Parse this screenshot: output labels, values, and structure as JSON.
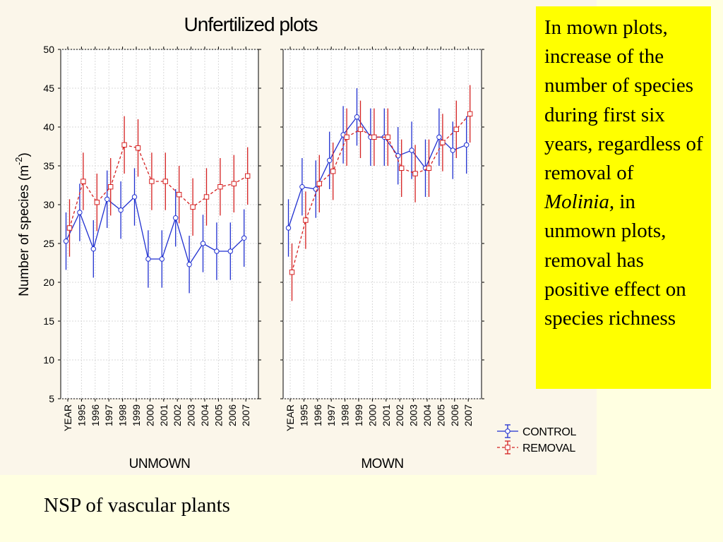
{
  "chart_data": {
    "type": "line",
    "title": "Unfertilized plots",
    "ylabel": "Number of species (m",
    "ylabel_sup": "-2",
    "ylabel_close": ")",
    "ylim": [
      5,
      50
    ],
    "yticks": [
      5,
      10,
      15,
      20,
      25,
      30,
      35,
      40,
      45,
      50
    ],
    "grid": true,
    "legend_position": "bottom-right",
    "legend": [
      "CONTROL",
      "REMOVAL"
    ],
    "colors": {
      "control": "#1f2fd0",
      "removal": "#d42020"
    },
    "x_first_label": "YEAR",
    "categories": [
      "1995",
      "1996",
      "1997",
      "1998",
      "1999",
      "2000",
      "2001",
      "2002",
      "2003",
      "2004",
      "2005",
      "2006",
      "2007"
    ],
    "panels": [
      {
        "label": "UNMOWN",
        "series": [
          {
            "name": "CONTROL",
            "x": [
              "YEAR",
              "1995",
              "1996",
              "1997",
              "1998",
              "1999",
              "2000",
              "2001",
              "2002",
              "2003",
              "2004",
              "2005",
              "2006",
              "2007"
            ],
            "values": [
              25.3,
              29.0,
              24.3,
              30.7,
              29.3,
              31.0,
              23.0,
              23.0,
              28.3,
              22.3,
              25.0,
              24.0,
              24.0,
              25.7
            ],
            "error": [
              3.7,
              3.7,
              3.7,
              3.7,
              3.7,
              3.7,
              3.7,
              3.7,
              3.7,
              3.7,
              3.7,
              3.7,
              3.7,
              3.7
            ]
          },
          {
            "name": "REMOVAL",
            "x": [
              "YEAR",
              "1995",
              "1996",
              "1997",
              "1998",
              "1999",
              "2000",
              "2001",
              "2002",
              "2003",
              "2004",
              "2005",
              "2006",
              "2007"
            ],
            "values": [
              27.0,
              33.0,
              30.3,
              32.3,
              37.7,
              37.3,
              33.0,
              33.0,
              31.3,
              29.7,
              31.0,
              32.3,
              32.7,
              33.7
            ],
            "error": [
              3.7,
              3.7,
              3.7,
              3.7,
              3.7,
              3.7,
              3.7,
              3.7,
              3.7,
              3.7,
              3.7,
              3.7,
              3.7,
              3.7
            ]
          }
        ]
      },
      {
        "label": "MOWN",
        "series": [
          {
            "name": "CONTROL",
            "x": [
              "YEAR",
              "1995",
              "1996",
              "1997",
              "1998",
              "1999",
              "2000",
              "2001",
              "2002",
              "2003",
              "2004",
              "2005",
              "2006",
              "2007"
            ],
            "values": [
              27.0,
              32.3,
              32.0,
              35.7,
              39.0,
              41.3,
              38.7,
              38.7,
              36.3,
              37.0,
              34.7,
              38.7,
              37.0,
              37.7
            ],
            "error": [
              3.7,
              3.7,
              3.7,
              3.7,
              3.7,
              3.7,
              3.7,
              3.7,
              3.7,
              3.7,
              3.7,
              3.7,
              3.7,
              3.7
            ]
          },
          {
            "name": "REMOVAL",
            "x": [
              "YEAR",
              "1995",
              "1996",
              "1997",
              "1998",
              "1999",
              "2000",
              "2001",
              "2002",
              "2003",
              "2004",
              "2005",
              "2006",
              "2007"
            ],
            "values": [
              21.3,
              28.0,
              32.7,
              34.3,
              38.7,
              39.7,
              38.7,
              38.7,
              34.7,
              34.0,
              34.7,
              38.0,
              39.7,
              41.7
            ],
            "error": [
              3.7,
              3.7,
              3.7,
              3.7,
              3.7,
              3.7,
              3.7,
              3.7,
              3.7,
              3.7,
              3.7,
              3.7,
              3.7,
              3.7
            ]
          }
        ]
      }
    ]
  },
  "note": {
    "text_before": "In mown plots, increase of the number of species during first six years, regardless of removal of ",
    "italic": "Molinia,",
    "text_after": " in unmown plots, removal has positive effect on species richness"
  },
  "caption": "NSP of vascular plants"
}
